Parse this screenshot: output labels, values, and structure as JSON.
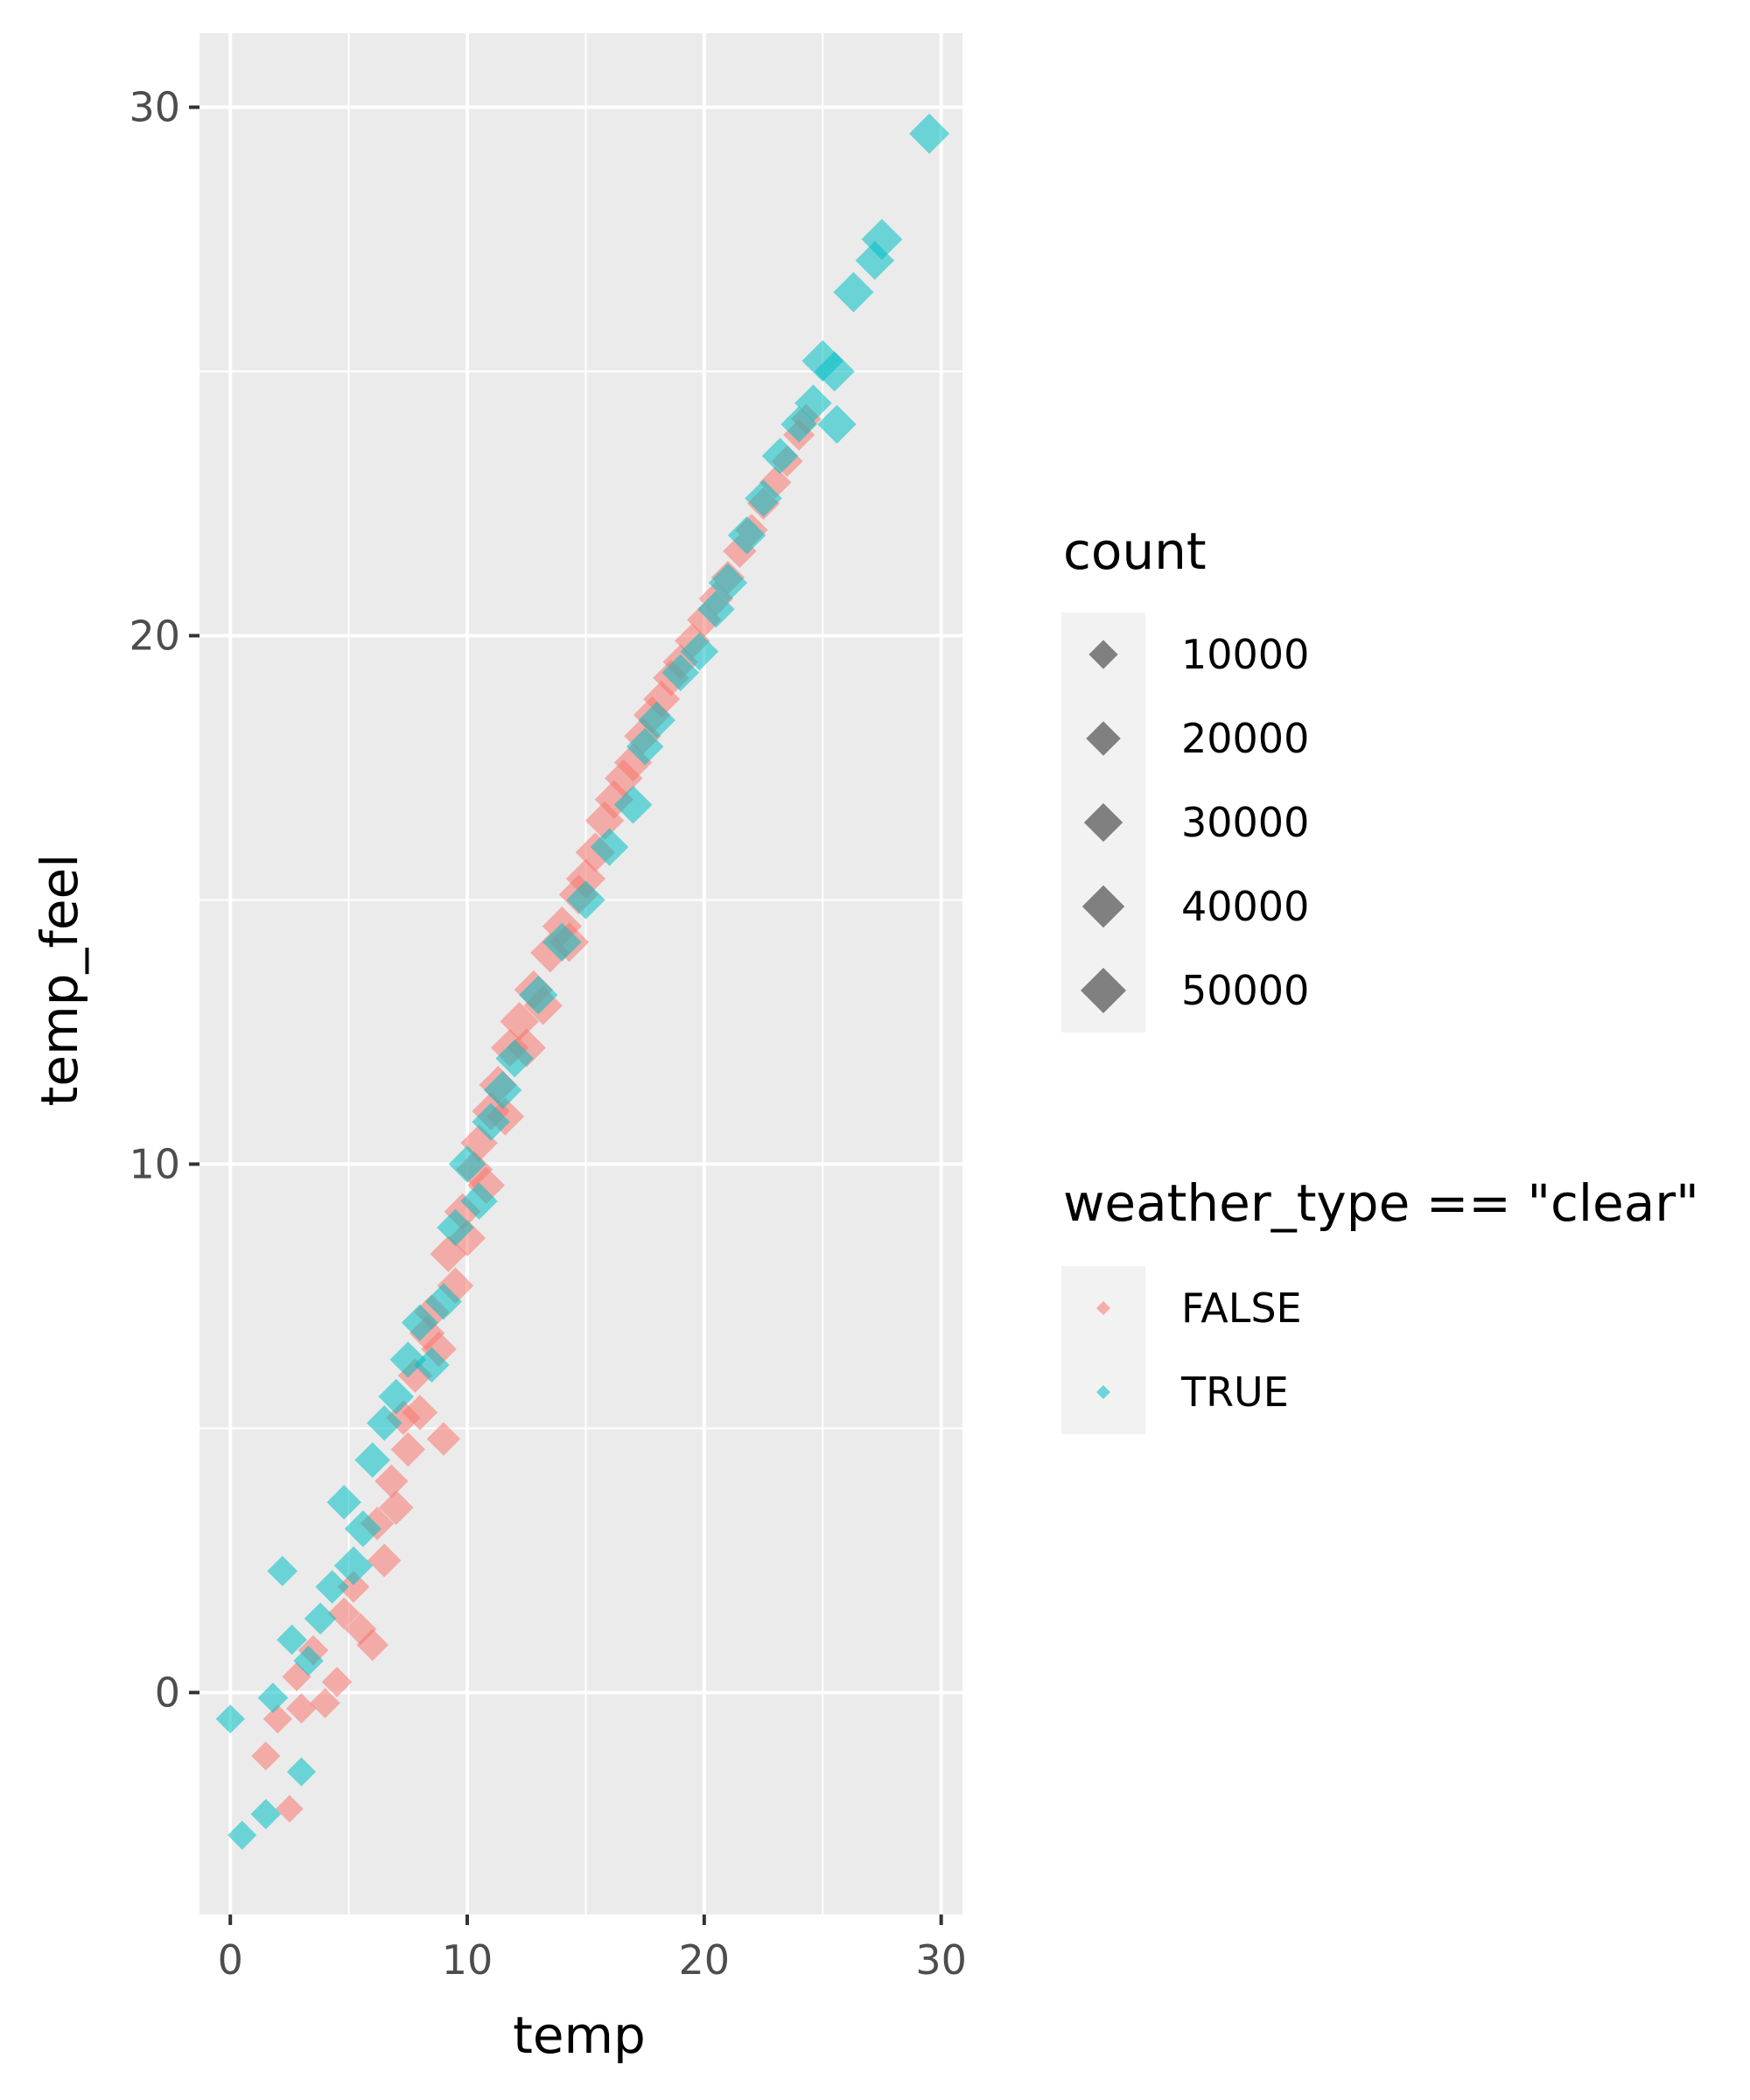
{
  "chart_data": {
    "type": "scatter",
    "title": "",
    "xlabel": "temp",
    "ylabel": "temp_feel",
    "xlim": [
      -1.3,
      30.9
    ],
    "ylim": [
      -4.2,
      31.4
    ],
    "x_ticks": [
      0,
      10,
      20,
      30
    ],
    "y_ticks": [
      0,
      10,
      20,
      30
    ],
    "grid": true,
    "marker": "diamond",
    "size_legend": {
      "title": "count",
      "entries": [
        {
          "label": "10000",
          "value": 10000
        },
        {
          "label": "20000",
          "value": 20000
        },
        {
          "label": "30000",
          "value": 30000
        },
        {
          "label": "40000",
          "value": 40000
        },
        {
          "label": "50000",
          "value": 50000
        }
      ]
    },
    "color_legend": {
      "title": "weather_type == \"clear\"",
      "entries": [
        {
          "label": "FALSE",
          "color": "#F8766D"
        },
        {
          "label": "TRUE",
          "color": "#00BFC4"
        }
      ]
    },
    "series": [
      {
        "name": "FALSE",
        "color": "#F8766D",
        "points": [
          {
            "x": 1.5,
            "y": -1.2,
            "size": 10000
          },
          {
            "x": 2.0,
            "y": -0.5,
            "size": 10000
          },
          {
            "x": 2.5,
            "y": -2.2,
            "size": 8000
          },
          {
            "x": 2.8,
            "y": 0.3,
            "size": 10000
          },
          {
            "x": 3.0,
            "y": -0.3,
            "size": 12000
          },
          {
            "x": 3.5,
            "y": 0.8,
            "size": 12000
          },
          {
            "x": 4.0,
            "y": -0.2,
            "size": 12000
          },
          {
            "x": 4.5,
            "y": 0.2,
            "size": 12000
          },
          {
            "x": 4.8,
            "y": 1.5,
            "size": 15000
          },
          {
            "x": 5.2,
            "y": 2.0,
            "size": 15000
          },
          {
            "x": 5.5,
            "y": 1.2,
            "size": 15000
          },
          {
            "x": 6.0,
            "y": 0.9,
            "size": 15000
          },
          {
            "x": 6.2,
            "y": 3.2,
            "size": 18000
          },
          {
            "x": 6.5,
            "y": 2.5,
            "size": 18000
          },
          {
            "x": 6.8,
            "y": 4.0,
            "size": 18000
          },
          {
            "x": 7.0,
            "y": 3.5,
            "size": 20000
          },
          {
            "x": 7.3,
            "y": 5.2,
            "size": 20000
          },
          {
            "x": 7.5,
            "y": 4.6,
            "size": 20000
          },
          {
            "x": 7.8,
            "y": 6.0,
            "size": 20000
          },
          {
            "x": 8.0,
            "y": 5.3,
            "size": 22000
          },
          {
            "x": 8.3,
            "y": 6.8,
            "size": 22000
          },
          {
            "x": 8.5,
            "y": 7.2,
            "size": 22000
          },
          {
            "x": 8.8,
            "y": 6.5,
            "size": 22000
          },
          {
            "x": 9.0,
            "y": 4.8,
            "size": 18000
          },
          {
            "x": 9.2,
            "y": 8.3,
            "size": 24000
          },
          {
            "x": 9.5,
            "y": 7.7,
            "size": 24000
          },
          {
            "x": 9.8,
            "y": 9.1,
            "size": 25000
          },
          {
            "x": 10.0,
            "y": 8.6,
            "size": 25000
          },
          {
            "x": 10.3,
            "y": 9.9,
            "size": 25000
          },
          {
            "x": 10.5,
            "y": 10.4,
            "size": 26000
          },
          {
            "x": 10.8,
            "y": 9.6,
            "size": 26000
          },
          {
            "x": 11.0,
            "y": 11.0,
            "size": 28000
          },
          {
            "x": 11.3,
            "y": 11.5,
            "size": 28000
          },
          {
            "x": 11.6,
            "y": 10.9,
            "size": 28000
          },
          {
            "x": 11.8,
            "y": 12.2,
            "size": 28000
          },
          {
            "x": 12.2,
            "y": 12.7,
            "size": 30000
          },
          {
            "x": 12.5,
            "y": 12.2,
            "size": 30000
          },
          {
            "x": 12.8,
            "y": 13.3,
            "size": 30000
          },
          {
            "x": 13.2,
            "y": 13.0,
            "size": 30000
          },
          {
            "x": 13.5,
            "y": 14.0,
            "size": 32000
          },
          {
            "x": 14.0,
            "y": 14.5,
            "size": 32000
          },
          {
            "x": 14.3,
            "y": 14.2,
            "size": 32000
          },
          {
            "x": 14.7,
            "y": 15.1,
            "size": 32000
          },
          {
            "x": 15.0,
            "y": 15.4,
            "size": 32000
          },
          {
            "x": 15.4,
            "y": 15.9,
            "size": 32000
          },
          {
            "x": 15.8,
            "y": 16.5,
            "size": 30000
          },
          {
            "x": 16.2,
            "y": 16.9,
            "size": 30000
          },
          {
            "x": 16.6,
            "y": 17.3,
            "size": 28000
          },
          {
            "x": 17.0,
            "y": 17.6,
            "size": 28000
          },
          {
            "x": 17.4,
            "y": 18.1,
            "size": 26000
          },
          {
            "x": 17.8,
            "y": 18.5,
            "size": 26000
          },
          {
            "x": 18.2,
            "y": 18.8,
            "size": 25000
          },
          {
            "x": 18.6,
            "y": 19.2,
            "size": 24000
          },
          {
            "x": 19.0,
            "y": 19.5,
            "size": 22000
          },
          {
            "x": 19.5,
            "y": 19.9,
            "size": 22000
          },
          {
            "x": 20.0,
            "y": 20.3,
            "size": 20000
          },
          {
            "x": 20.5,
            "y": 20.7,
            "size": 20000
          },
          {
            "x": 21.0,
            "y": 21.1,
            "size": 18000
          },
          {
            "x": 21.5,
            "y": 21.6,
            "size": 18000
          },
          {
            "x": 22.0,
            "y": 22.0,
            "size": 16000
          },
          {
            "x": 22.5,
            "y": 22.5,
            "size": 16000
          },
          {
            "x": 23.0,
            "y": 22.9,
            "size": 15000
          },
          {
            "x": 23.5,
            "y": 23.3,
            "size": 14000
          },
          {
            "x": 24.0,
            "y": 23.8,
            "size": 14000
          },
          {
            "x": 24.3,
            "y": 24.1,
            "size": 12000
          }
        ]
      },
      {
        "name": "TRUE",
        "color": "#00BFC4",
        "points": [
          {
            "x": 0.0,
            "y": -0.5,
            "size": 10000
          },
          {
            "x": 0.5,
            "y": -2.7,
            "size": 10000
          },
          {
            "x": 1.5,
            "y": -2.3,
            "size": 12000
          },
          {
            "x": 1.8,
            "y": -0.1,
            "size": 12000
          },
          {
            "x": 2.2,
            "y": 2.3,
            "size": 12000
          },
          {
            "x": 2.6,
            "y": 1.0,
            "size": 12000
          },
          {
            "x": 3.0,
            "y": -1.5,
            "size": 10000
          },
          {
            "x": 3.3,
            "y": 0.6,
            "size": 12000
          },
          {
            "x": 3.8,
            "y": 1.4,
            "size": 15000
          },
          {
            "x": 4.3,
            "y": 2.0,
            "size": 18000
          },
          {
            "x": 4.8,
            "y": 3.6,
            "size": 20000
          },
          {
            "x": 5.2,
            "y": 2.4,
            "size": 30000
          },
          {
            "x": 5.6,
            "y": 3.1,
            "size": 25000
          },
          {
            "x": 6.0,
            "y": 4.4,
            "size": 22000
          },
          {
            "x": 6.5,
            "y": 5.1,
            "size": 22000
          },
          {
            "x": 7.0,
            "y": 5.6,
            "size": 22000
          },
          {
            "x": 7.5,
            "y": 6.3,
            "size": 24000
          },
          {
            "x": 8.0,
            "y": 7.0,
            "size": 25000
          },
          {
            "x": 8.5,
            "y": 6.2,
            "size": 22000
          },
          {
            "x": 9.0,
            "y": 7.4,
            "size": 25000
          },
          {
            "x": 9.5,
            "y": 8.8,
            "size": 26000
          },
          {
            "x": 10.0,
            "y": 10.0,
            "size": 26000
          },
          {
            "x": 10.5,
            "y": 9.3,
            "size": 26000
          },
          {
            "x": 11.0,
            "y": 10.8,
            "size": 28000
          },
          {
            "x": 11.5,
            "y": 11.4,
            "size": 28000
          },
          {
            "x": 12.0,
            "y": 12.0,
            "size": 28000
          },
          {
            "x": 13.0,
            "y": 13.2,
            "size": 30000
          },
          {
            "x": 14.0,
            "y": 14.2,
            "size": 30000
          },
          {
            "x": 15.0,
            "y": 15.0,
            "size": 30000
          },
          {
            "x": 16.0,
            "y": 16.0,
            "size": 28000
          },
          {
            "x": 17.0,
            "y": 16.8,
            "size": 28000
          },
          {
            "x": 17.5,
            "y": 17.9,
            "size": 26000
          },
          {
            "x": 18.0,
            "y": 18.4,
            "size": 26000
          },
          {
            "x": 19.0,
            "y": 19.3,
            "size": 26000
          },
          {
            "x": 19.8,
            "y": 19.7,
            "size": 28000
          },
          {
            "x": 20.5,
            "y": 20.5,
            "size": 26000
          },
          {
            "x": 21.0,
            "y": 21.0,
            "size": 30000
          },
          {
            "x": 21.8,
            "y": 21.9,
            "size": 28000
          },
          {
            "x": 22.5,
            "y": 22.6,
            "size": 26000
          },
          {
            "x": 23.2,
            "y": 23.4,
            "size": 24000
          },
          {
            "x": 24.0,
            "y": 24.0,
            "size": 24000
          },
          {
            "x": 24.6,
            "y": 24.4,
            "size": 26000
          },
          {
            "x": 25.0,
            "y": 25.2,
            "size": 38000
          },
          {
            "x": 25.5,
            "y": 25.0,
            "size": 34000
          },
          {
            "x": 25.6,
            "y": 24.0,
            "size": 30000
          },
          {
            "x": 26.3,
            "y": 26.5,
            "size": 34000
          },
          {
            "x": 27.2,
            "y": 27.1,
            "size": 30000
          },
          {
            "x": 27.5,
            "y": 27.5,
            "size": 36000
          },
          {
            "x": 29.5,
            "y": 29.5,
            "size": 34000
          }
        ]
      }
    ]
  }
}
